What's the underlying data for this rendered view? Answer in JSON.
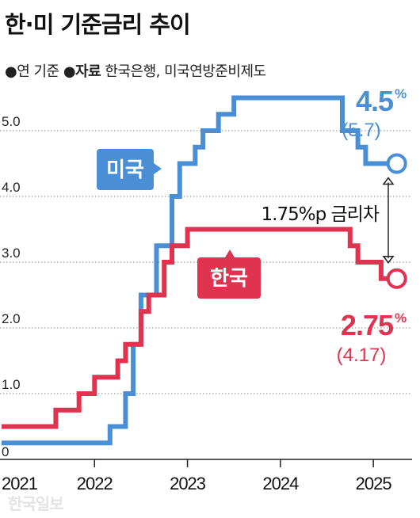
{
  "title": "한·미 기준금리 추이",
  "subtitle": {
    "basis": "●연 기준",
    "source_label": "●자료",
    "source": "한국은행, 미국연방준비제도"
  },
  "watermark": "한국일보",
  "colors": {
    "us": "#4a8fd6",
    "korea": "#e03350",
    "grid": "#8a8a8a",
    "axis": "#222222",
    "pct": "#f07a90"
  },
  "chart_data": {
    "type": "line",
    "line_style": "step",
    "x_ticks": [
      "2021",
      "2022",
      "2023",
      "2024",
      "2025"
    ],
    "y_ticks": [
      "0",
      "1.0",
      "2.0",
      "3.0",
      "4.0",
      "5.0"
    ],
    "xlim": [
      "2021-01",
      "2025-06"
    ],
    "ylim": [
      0,
      5.5
    ],
    "grid": "horizontal dotted",
    "series": [
      {
        "name": "미국",
        "label": "미국",
        "points": [
          [
            "2021-01",
            0.25
          ],
          [
            "2022-03",
            0.5
          ],
          [
            "2022-05",
            1.0
          ],
          [
            "2022-06",
            1.75
          ],
          [
            "2022-07",
            2.5
          ],
          [
            "2022-09",
            3.25
          ],
          [
            "2022-11",
            4.0
          ],
          [
            "2022-12",
            4.5
          ],
          [
            "2023-02",
            4.75
          ],
          [
            "2023-03",
            5.0
          ],
          [
            "2023-05",
            5.25
          ],
          [
            "2023-07",
            5.5
          ],
          [
            "2024-09",
            5.0
          ],
          [
            "2024-11",
            4.75
          ],
          [
            "2024-12",
            4.5
          ],
          [
            "2025-03",
            4.5
          ]
        ],
        "end_value": "4.5",
        "end_unit": "%",
        "end_sub": "(5.7)"
      },
      {
        "name": "한국",
        "label": "한국",
        "points": [
          [
            "2021-01",
            0.5
          ],
          [
            "2021-08",
            0.75
          ],
          [
            "2021-11",
            1.0
          ],
          [
            "2022-01",
            1.25
          ],
          [
            "2022-04",
            1.5
          ],
          [
            "2022-05",
            1.75
          ],
          [
            "2022-07",
            2.25
          ],
          [
            "2022-08",
            2.5
          ],
          [
            "2022-10",
            3.0
          ],
          [
            "2022-11",
            3.25
          ],
          [
            "2023-01",
            3.5
          ],
          [
            "2024-10",
            3.25
          ],
          [
            "2024-11",
            3.0
          ],
          [
            "2025-02",
            2.75
          ],
          [
            "2025-03",
            2.75
          ]
        ],
        "end_value": "2.75",
        "end_unit": "%",
        "end_sub": "(4.17)"
      }
    ],
    "annotations": [
      {
        "text": "1.75%p 금리차"
      }
    ]
  }
}
